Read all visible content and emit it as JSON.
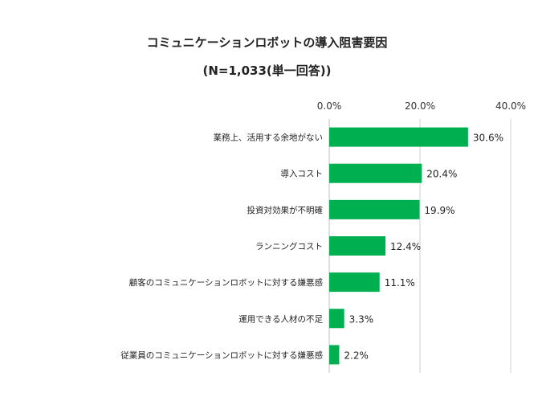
{
  "chart_data": {
    "type": "bar",
    "orientation": "horizontal",
    "title": "コミュニケーションロボットの導入阻害要因",
    "subtitle": "(N=1,033(単一回答))",
    "categories": [
      "業務上、活用する余地がない",
      "導入コスト",
      "投資対効果が不明確",
      "ランニングコスト",
      "顧客のコミュニケーションロボットに対する嫌悪感",
      "運用できる人材の不足",
      "従業員のコミュニケーションロボットに対する嫌悪感"
    ],
    "values": [
      30.6,
      20.4,
      19.9,
      12.4,
      11.1,
      3.3,
      2.2
    ],
    "value_labels": [
      "30.6%",
      "20.4%",
      "19.9%",
      "12.4%",
      "11.1%",
      "3.3%",
      "2.2%"
    ],
    "xlim": [
      0,
      40
    ],
    "xticks": [
      "0.0%",
      "20.0%",
      "40.0%"
    ],
    "xtick_values": [
      0,
      20,
      40
    ],
    "axis_position": "top",
    "grid": true,
    "bar_color": "#00b050"
  }
}
